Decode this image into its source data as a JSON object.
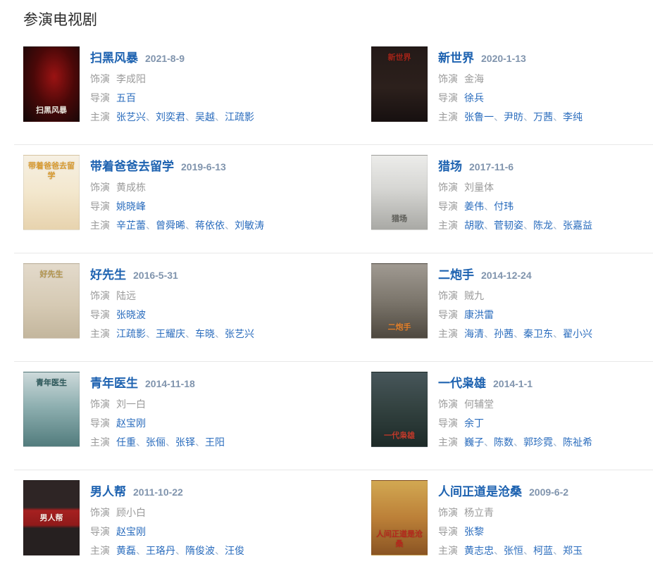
{
  "section": {
    "title": "参演电视剧"
  },
  "labels": {
    "role": "饰演",
    "director": "导演",
    "starring": "主演",
    "separator": "、"
  },
  "colors": {
    "title_link": "#1d62b0",
    "name_link": "#2a6cbd",
    "date_text": "#8094ad",
    "label_text": "#9a9a9a",
    "separator_text": "#9db1cb",
    "divider_line": "#e8e8e8"
  },
  "shows": [
    {
      "title": "扫黑风暴",
      "date": "2021-8-9",
      "role": "李成阳",
      "directors": [
        "五百"
      ],
      "starring": [
        "张艺兴",
        "刘奕君",
        "吴越",
        "江疏影"
      ],
      "poster": {
        "label": "扫黑风暴",
        "bg": "radial-gradient(ellipse at 55% 40%, #9b1313 0%, #4a0808 48%, #120707 100%)",
        "color": "#e8e3da",
        "pos": "bottom"
      }
    },
    {
      "title": "新世界",
      "date": "2020-1-13",
      "role": "金海",
      "directors": [
        "徐兵"
      ],
      "starring": [
        "张鲁一",
        "尹昉",
        "万茜",
        "李纯"
      ],
      "poster": {
        "label": "新世界",
        "bg": "linear-gradient(180deg, #241a18 0%, #2c201c 55%, #171010 100%)",
        "color": "#a32419",
        "pos": "top"
      }
    },
    {
      "title": "带着爸爸去留学",
      "date": "2019-6-13",
      "role": "黄成栋",
      "directors": [
        "姚晓峰"
      ],
      "starring": [
        "辛芷蕾",
        "曾舜晞",
        "蒋依依",
        "刘敏涛"
      ],
      "poster": {
        "label": "带着爸爸去留学",
        "bg": "linear-gradient(180deg, #f6f0e3 0%, #f3e7cd 50%, #e7d3ae 100%)",
        "color": "#d99a2e",
        "pos": "top"
      }
    },
    {
      "title": "猎场",
      "date": "2017-11-6",
      "role": "刘量体",
      "directors": [
        "姜伟",
        "付玮"
      ],
      "starring": [
        "胡歌",
        "菅韧姿",
        "陈龙",
        "张嘉益"
      ],
      "poster": {
        "label": "猎场",
        "bg": "linear-gradient(180deg, #ececea 0%, #d6d6d3 45%, #a9a9a5 100%)",
        "color": "#60605b",
        "pos": "bottom"
      }
    },
    {
      "title": "好先生",
      "date": "2016-5-31",
      "role": "陆远",
      "directors": [
        "张晓波"
      ],
      "starring": [
        "江疏影",
        "王耀庆",
        "车晓",
        "张艺兴"
      ],
      "poster": {
        "label": "好先生",
        "bg": "linear-gradient(180deg, #e3dacb 0%, #d6cab4 55%, #c3b69d 100%)",
        "color": "#b2944c",
        "pos": "top"
      }
    },
    {
      "title": "二炮手",
      "date": "2014-12-24",
      "role": "贼九",
      "directors": [
        "康洪雷"
      ],
      "starring": [
        "海清",
        "孙茜",
        "秦卫东",
        "翟小兴"
      ],
      "poster": {
        "label": "二炮手",
        "bg": "linear-gradient(180deg, #a09a92 0%, #7c766c 50%, #4e483f 100%)",
        "color": "#e07f2b",
        "pos": "bottom"
      }
    },
    {
      "title": "青年医生",
      "date": "2014-11-18",
      "role": "刘一白",
      "directors": [
        "赵宝刚"
      ],
      "starring": [
        "任重",
        "张俪",
        "张铎",
        "王阳"
      ],
      "poster": {
        "label": "青年医生",
        "bg": "linear-gradient(180deg, #cdd9da 0%, #8fb0b1 45%, #527c7d 100%)",
        "color": "#2e5a5c",
        "pos": "top"
      }
    },
    {
      "title": "一代枭雄",
      "date": "2014-1-1",
      "role": "何辅堂",
      "directors": [
        "余丁"
      ],
      "starring": [
        "巍子",
        "陈数",
        "郭珍霓",
        "陈祉希"
      ],
      "poster": {
        "label": "一代枭雄",
        "bg": "linear-gradient(180deg, #47565a 0%, #32413f 50%, #1d2a28 100%)",
        "color": "#c03a2b",
        "pos": "bottom"
      }
    },
    {
      "title": "男人帮",
      "date": "2011-10-22",
      "role": "顾小白",
      "directors": [
        "赵宝刚"
      ],
      "starring": [
        "黄磊",
        "王珞丹",
        "隋俊波",
        "汪俊"
      ],
      "poster": {
        "label": "男人帮",
        "bg": "linear-gradient(180deg, #2e2525 0%, #2e2525 36%, #a62020 40%, #8f1a1a 60%, #262020 64%, #262020 100%)",
        "color": "#f2e9e2",
        "pos": "center"
      }
    },
    {
      "title": "人间正道是沧桑",
      "date": "2009-6-2",
      "role": "杨立青",
      "directors": [
        "张黎"
      ],
      "starring": [
        "黄志忠",
        "张恒",
        "柯蓝",
        "郑玉"
      ],
      "poster": {
        "label": "人间正道是沧桑",
        "bg": "linear-gradient(180deg, #d2a852 0%, #bc8038 50%, #8a5423 100%)",
        "color": "#b4281c",
        "pos": "bottom"
      }
    }
  ]
}
